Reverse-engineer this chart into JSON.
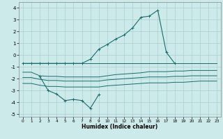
{
  "x": [
    0,
    1,
    2,
    3,
    4,
    5,
    6,
    7,
    8,
    9,
    10,
    11,
    12,
    13,
    14,
    15,
    16,
    17,
    18,
    19,
    20,
    21,
    22,
    23
  ],
  "main_x": [
    0,
    1,
    2,
    3,
    4,
    5,
    6,
    7,
    8,
    9,
    10,
    11,
    12,
    13,
    14,
    15,
    16,
    17,
    18
  ],
  "main_y": [
    -0.7,
    -0.7,
    -0.7,
    -0.7,
    -0.7,
    -0.7,
    -0.7,
    -0.7,
    -0.35,
    0.5,
    0.9,
    1.35,
    1.7,
    2.3,
    3.2,
    3.3,
    3.8,
    0.25,
    -0.7
  ],
  "dip_x": [
    2,
    3,
    4,
    5,
    6,
    7,
    8,
    9
  ],
  "dip_y": [
    -1.8,
    -3.0,
    -3.3,
    -3.85,
    -3.75,
    -3.85,
    -4.5,
    -3.35
  ],
  "band_top": [
    -0.7,
    -0.7,
    -0.7,
    -0.7,
    -0.7,
    -0.7,
    -0.7,
    -0.7,
    -0.7,
    -0.7,
    -0.7,
    -0.7,
    -0.7,
    -0.7,
    -0.7,
    -0.7,
    -0.7,
    -0.7,
    -0.7,
    -0.7,
    -0.7,
    -0.7,
    -0.7,
    -0.7
  ],
  "band_mid1": [
    -1.45,
    -1.45,
    -1.75,
    -1.8,
    -1.8,
    -1.85,
    -1.85,
    -1.85,
    -1.85,
    -1.85,
    -1.75,
    -1.65,
    -1.6,
    -1.55,
    -1.5,
    -1.4,
    -1.4,
    -1.4,
    -1.35,
    -1.35,
    -1.3,
    -1.3,
    -1.3,
    -1.3
  ],
  "band_mid2": [
    -1.9,
    -1.9,
    -2.05,
    -2.15,
    -2.15,
    -2.2,
    -2.2,
    -2.2,
    -2.2,
    -2.2,
    -2.1,
    -2.05,
    -2.0,
    -1.95,
    -1.9,
    -1.85,
    -1.85,
    -1.85,
    -1.8,
    -1.8,
    -1.75,
    -1.75,
    -1.75,
    -1.75
  ],
  "band_bot": [
    -2.4,
    -2.4,
    -2.55,
    -2.65,
    -2.65,
    -2.7,
    -2.7,
    -2.7,
    -2.7,
    -2.7,
    -2.6,
    -2.55,
    -2.5,
    -2.45,
    -2.4,
    -2.35,
    -2.35,
    -2.35,
    -2.3,
    -2.3,
    -2.25,
    -2.2,
    -2.2,
    -2.2
  ],
  "xlabel": "Humidex (Indice chaleur)",
  "ylim": [
    -5.2,
    4.5
  ],
  "xlim": [
    -0.5,
    23.5
  ],
  "yticks": [
    -5,
    -4,
    -3,
    -2,
    -1,
    0,
    1,
    2,
    3,
    4
  ],
  "xticks": [
    0,
    1,
    2,
    3,
    4,
    5,
    6,
    7,
    8,
    9,
    10,
    11,
    12,
    13,
    14,
    15,
    16,
    17,
    18,
    19,
    20,
    21,
    22,
    23
  ],
  "line_color": "#1a6b6b",
  "bg_color": "#cceaea",
  "grid_color": "#aacece"
}
